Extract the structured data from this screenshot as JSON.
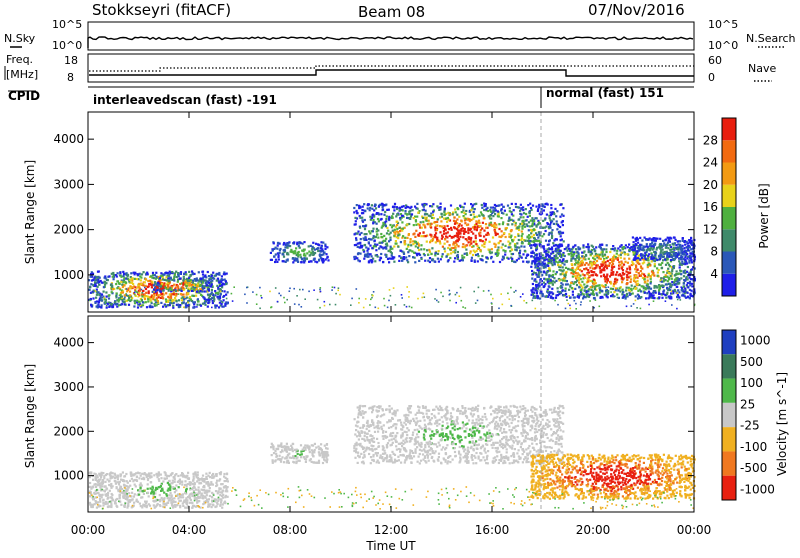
{
  "header": {
    "station": "Stokkseyri (fitACF)",
    "beam": "Beam 08",
    "date": "07/Nov/2016"
  },
  "sky_panel": {
    "left_label": "N.Sky",
    "right_label": "N.Search",
    "left_ticks": [
      "10^5",
      "10^0"
    ],
    "right_ticks": [
      "10^5",
      "10^0"
    ]
  },
  "freq_panel": {
    "left_label_1": "Freq.",
    "left_label_2": "[MHz]",
    "right_label": "Nave",
    "left_ticks": [
      "18",
      "8"
    ],
    "right_ticks": [
      "60",
      "0"
    ]
  },
  "cpid": {
    "label": "CPID",
    "segments": [
      {
        "name": "interleavedscan (fast) -191",
        "start_hour": 0,
        "end_hour": 18
      },
      {
        "name": "normal (fast) 151",
        "start_hour": 18,
        "end_hour": 24
      }
    ]
  },
  "chart_data": [
    {
      "type": "heatmap",
      "title": "Power",
      "ylabel": "Slant Range [km]",
      "xlabel": "",
      "ylim": [
        180,
        4600
      ],
      "yticks": [
        "1000",
        "2000",
        "3000",
        "4000"
      ],
      "xlim": [
        "00:00",
        "00:00"
      ],
      "colorbar": {
        "label": "Power [dB]",
        "ticks": [
          "4",
          "8",
          "12",
          "16",
          "20",
          "24",
          "28"
        ]
      },
      "echo_regions": [
        {
          "t_start": 0.0,
          "t_end": 5.5,
          "range_km": [
            300,
            1100
          ],
          "peak_dB": 28
        },
        {
          "t_start": 2.5,
          "t_end": 4.8,
          "range_km": [
            650,
            950
          ],
          "peak_dB": 28
        },
        {
          "t_start": 7.2,
          "t_end": 9.5,
          "range_km": [
            1300,
            1750
          ],
          "peak_dB": 12
        },
        {
          "t_start": 10.5,
          "t_end": 18.8,
          "range_km": [
            1300,
            2600
          ],
          "peak_dB": 28
        },
        {
          "t_start": 17.5,
          "t_end": 24.0,
          "range_km": [
            500,
            1700
          ],
          "peak_dB": 28
        },
        {
          "t_start": 21.5,
          "t_end": 24.0,
          "range_km": [
            1350,
            1850
          ],
          "peak_dB": 8
        }
      ]
    },
    {
      "type": "heatmap",
      "title": "Velocity",
      "ylabel": "Slant Range [km]",
      "xlabel": "Time UT",
      "ylim": [
        180,
        4600
      ],
      "yticks": [
        "1000",
        "2000",
        "3000",
        "4000"
      ],
      "xticks": [
        "00:00",
        "04:00",
        "08:00",
        "12:00",
        "16:00",
        "20:00",
        "00:00"
      ],
      "colorbar": {
        "label": "Velocity [m s^-1]",
        "ticks": [
          "1000",
          "500",
          "100",
          "25",
          "-25",
          "-100",
          "-500",
          "-1000"
        ]
      },
      "echo_regions": [
        {
          "t_start": 0.0,
          "t_end": 5.5,
          "range_km": [
            300,
            1100
          ],
          "velocity_ms": 0
        },
        {
          "t_start": 7.2,
          "t_end": 9.5,
          "range_km": [
            1300,
            1750
          ],
          "velocity_ms": 0
        },
        {
          "t_start": 10.5,
          "t_end": 18.8,
          "range_km": [
            1300,
            2600
          ],
          "velocity_ms": 0
        },
        {
          "t_start": 17.5,
          "t_end": 24.0,
          "range_km": [
            500,
            1500
          ],
          "velocity_ms": -300
        }
      ]
    }
  ],
  "colors": {
    "power_scale": [
      "#1f1fe8",
      "#2b58b8",
      "#3f8a6a",
      "#4fb03f",
      "#e8d21a",
      "#f39a12",
      "#f26a10",
      "#e81e0e"
    ],
    "velocity_scale": [
      "#1f3fc0",
      "#3a7a5a",
      "#4fb84a",
      "#c8c8c8",
      "#f0b020",
      "#f07820",
      "#e82010"
    ],
    "ground_grey": "#c8c8c8"
  }
}
